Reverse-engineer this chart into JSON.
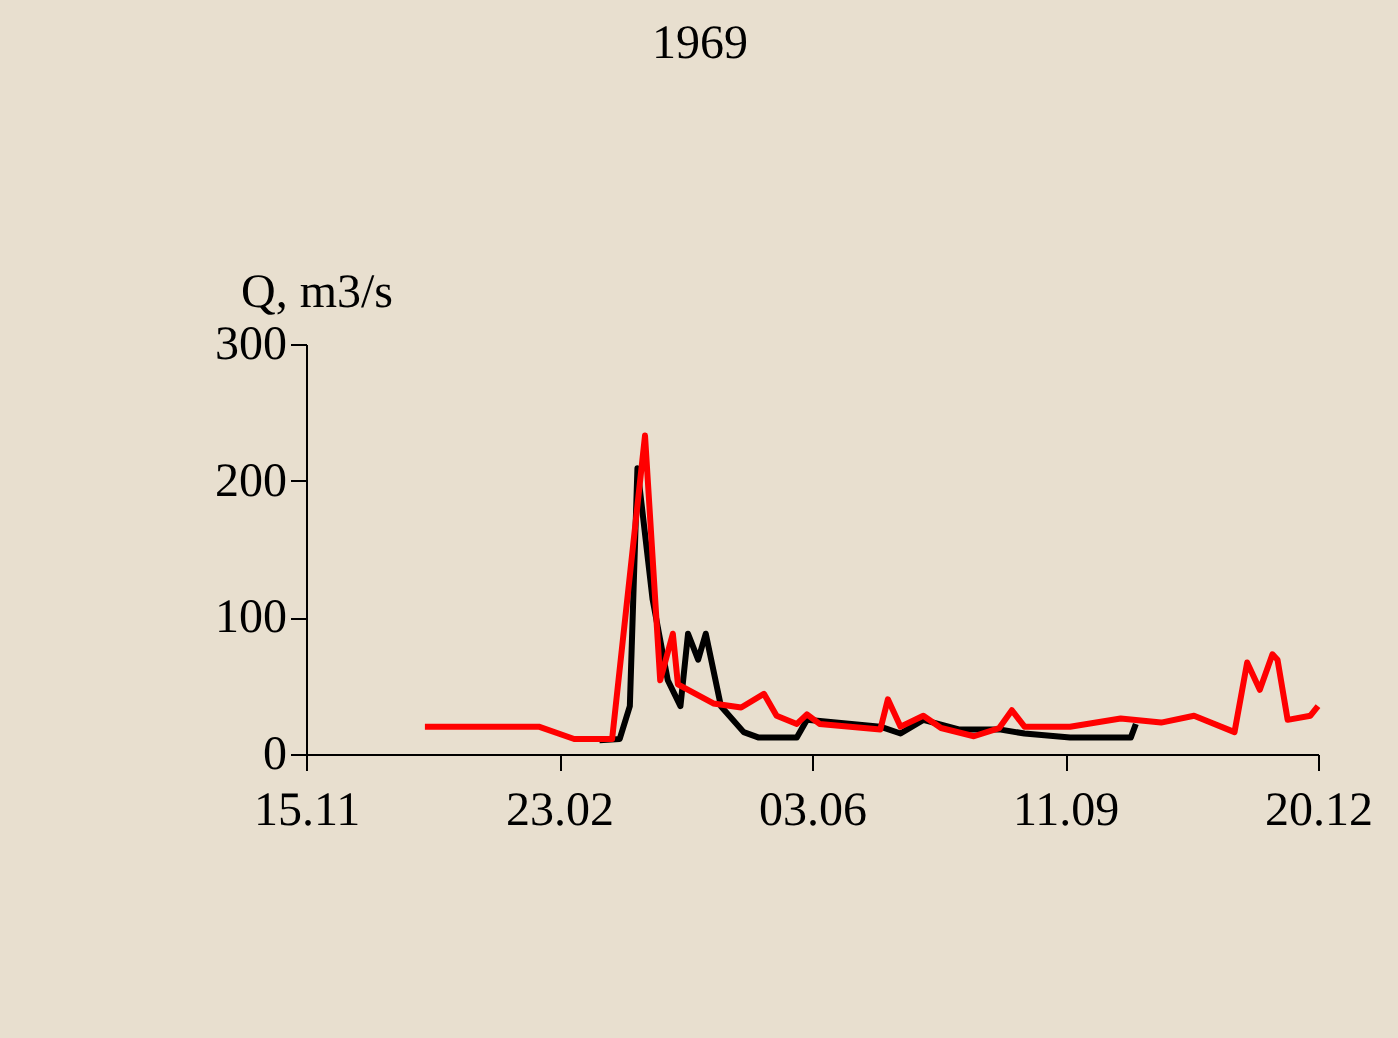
{
  "chart_data": {
    "type": "line",
    "title": "1969",
    "ylabel": "Q, m3/s",
    "xlim": [
      "1968-11-15",
      "1969-12-20"
    ],
    "xticks": [
      {
        "value": "1968-11-15",
        "label": "15.11"
      },
      {
        "value": "1969-02-23",
        "label": "23.02"
      },
      {
        "value": "1969-06-03",
        "label": "03.06"
      },
      {
        "value": "1969-09-11",
        "label": "11.09"
      },
      {
        "value": "1969-12-20",
        "label": "20.12"
      }
    ],
    "ylim": [
      0,
      300
    ],
    "yticks": [
      0,
      100,
      200,
      300
    ],
    "grid": false,
    "legend": false,
    "marker": "none",
    "line_style": "solid",
    "series": [
      {
        "color": "#000000",
        "x": [
          "1969-03-11",
          "1969-03-19",
          "1969-03-23",
          "1969-03-26",
          "1969-04-01",
          "1969-04-07",
          "1969-04-12",
          "1969-04-15",
          "1969-04-19",
          "1969-04-22",
          "1969-04-28",
          "1969-05-07",
          "1969-05-13",
          "1969-05-28",
          "1969-06-01",
          "1969-06-30",
          "1969-07-08",
          "1969-07-17",
          "1969-07-31",
          "1969-08-16",
          "1969-08-26",
          "1969-09-13",
          "1969-10-07",
          "1969-10-09"
        ],
        "values": [
          10,
          11,
          35,
          209,
          113,
          54,
          35,
          88,
          69,
          88,
          35,
          16,
          12,
          12,
          25,
          20,
          15,
          25,
          18,
          18,
          15,
          12,
          12,
          22
        ]
      },
      {
        "color": "#ff0000",
        "x": [
          "1969-01-01",
          "1969-02-15",
          "1969-03-01",
          "1969-03-16",
          "1969-03-29",
          "1969-04-04",
          "1969-04-09",
          "1969-04-11",
          "1969-04-25",
          "1969-05-06",
          "1969-05-15",
          "1969-05-20",
          "1969-05-28",
          "1969-06-01",
          "1969-06-06",
          "1969-06-30",
          "1969-07-03",
          "1969-07-08",
          "1969-07-17",
          "1969-07-24",
          "1969-08-06",
          "1969-08-16",
          "1969-08-21",
          "1969-08-26",
          "1969-09-13",
          "1969-10-03",
          "1969-10-19",
          "1969-11-01",
          "1969-11-17",
          "1969-11-22",
          "1969-11-27",
          "1969-12-02",
          "1969-12-04",
          "1969-12-08",
          "1969-12-17",
          "1969-12-20"
        ],
        "values": [
          20,
          20,
          11,
          11,
          233,
          54,
          88,
          51,
          37,
          34,
          44,
          28,
          22,
          29,
          22,
          18,
          40,
          20,
          28,
          19,
          13,
          19,
          32,
          20,
          20,
          26,
          23,
          28,
          16,
          67,
          47,
          73,
          69,
          25,
          28,
          35
        ]
      }
    ]
  }
}
